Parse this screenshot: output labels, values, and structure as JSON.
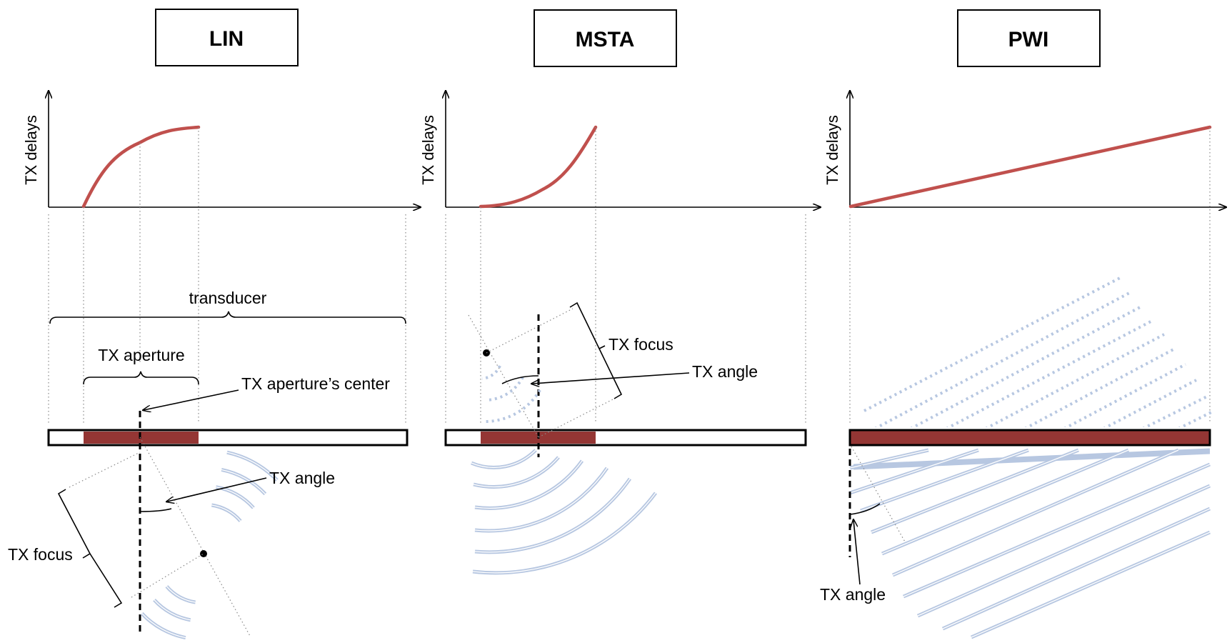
{
  "panels": {
    "lin": {
      "title": "LIN"
    },
    "msta": {
      "title": "MSTA"
    },
    "pwi": {
      "title": "PWI"
    }
  },
  "axis": {
    "ylabel": "TX delays"
  },
  "labels": {
    "transducer": "transducer",
    "tx_aperture": "TX aperture",
    "tx_aperture_center": "TX aperture’s center",
    "tx_angle": "TX angle",
    "tx_focus": "TX focus"
  },
  "colors": {
    "delay_curve": "#c0504d",
    "active_element": "#943634",
    "wavefront": "#b7c7e1"
  }
}
